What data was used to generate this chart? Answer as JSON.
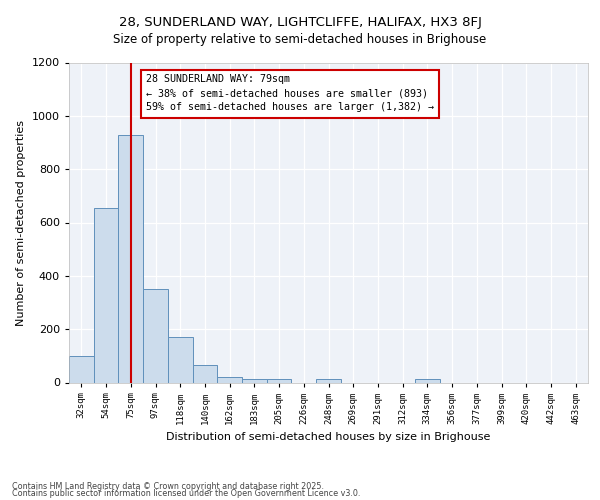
{
  "title1": "28, SUNDERLAND WAY, LIGHTCLIFFE, HALIFAX, HX3 8FJ",
  "title2": "Size of property relative to semi-detached houses in Brighouse",
  "xlabel": "Distribution of semi-detached houses by size in Brighouse",
  "ylabel": "Number of semi-detached properties",
  "bin_labels": [
    "32sqm",
    "54sqm",
    "75sqm",
    "97sqm",
    "118sqm",
    "140sqm",
    "162sqm",
    "183sqm",
    "205sqm",
    "226sqm",
    "248sqm",
    "269sqm",
    "291sqm",
    "312sqm",
    "334sqm",
    "356sqm",
    "377sqm",
    "399sqm",
    "420sqm",
    "442sqm",
    "463sqm"
  ],
  "bar_values": [
    100,
    655,
    930,
    350,
    170,
    65,
    22,
    15,
    14,
    0,
    14,
    0,
    0,
    0,
    12,
    0,
    0,
    0,
    0,
    0,
    0
  ],
  "bar_color": "#ccdcec",
  "bar_edge_color": "#6090bb",
  "vline_x": 2,
  "vline_color": "#cc0000",
  "annotation_title": "28 SUNDERLAND WAY: 79sqm",
  "annotation_line1": "← 38% of semi-detached houses are smaller (893)",
  "annotation_line2": "59% of semi-detached houses are larger (1,382) →",
  "annotation_box_color": "#ffffff",
  "annotation_box_edge": "#cc0000",
  "ylim": [
    0,
    1200
  ],
  "yticks": [
    0,
    200,
    400,
    600,
    800,
    1000,
    1200
  ],
  "bg_color": "#eef2f8",
  "footer1": "Contains HM Land Registry data © Crown copyright and database right 2025.",
  "footer2": "Contains public sector information licensed under the Open Government Licence v3.0."
}
